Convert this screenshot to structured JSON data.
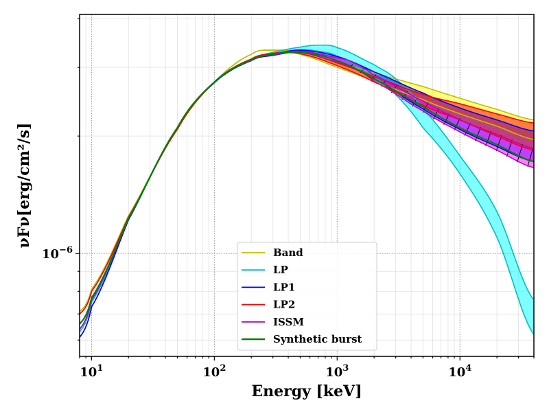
{
  "chart_data": {
    "type": "line",
    "xscale": "log",
    "yscale": "log",
    "xlim": [
      8,
      40000
    ],
    "ylim": [
      5.45e-07,
      4.1e-06
    ],
    "xlabel": "Energy [keV]",
    "ylabel": "νFν[erg/cm²/s]",
    "x_ticks": [
      {
        "value": 10,
        "base": "10",
        "exp": "1"
      },
      {
        "value": 100,
        "base": "10",
        "exp": "2"
      },
      {
        "value": 1000,
        "base": "10",
        "exp": "3"
      },
      {
        "value": 10000,
        "base": "10",
        "exp": "4"
      }
    ],
    "y_ticks": [
      {
        "value": 1e-06,
        "base": "10",
        "exp": "−6"
      }
    ],
    "grid": true,
    "legend_position": "bottom-center",
    "series": [
      {
        "name": "Band",
        "color": "#bfbf00",
        "fill": "#ffff00",
        "x": [
          8,
          10,
          20,
          50,
          100,
          200,
          300,
          500,
          1000,
          2000,
          5000,
          10000,
          20000,
          40000
        ],
        "y_lo": [
          7.1e-07,
          8.1e-07,
          1.25e-06,
          2.08e-06,
          2.75e-06,
          3.24e-06,
          3.32e-06,
          3.24e-06,
          3e-06,
          2.76e-06,
          2.48e-06,
          2.28e-06,
          2.12e-06,
          1.96e-06
        ],
        "y_hi": [
          7.1e-07,
          8.1e-07,
          1.25e-06,
          2.08e-06,
          2.75e-06,
          3.24e-06,
          3.32e-06,
          3.28e-06,
          3.08e-06,
          2.9e-06,
          2.68e-06,
          2.5e-06,
          2.34e-06,
          2.2e-06
        ]
      },
      {
        "name": "LP",
        "color": "#00bfbf",
        "fill": "#00ffff",
        "x": [
          8,
          10,
          20,
          50,
          100,
          200,
          300,
          500,
          700,
          1000,
          2000,
          3000,
          5000,
          10000,
          20000,
          40000
        ],
        "y_lo": [
          6.3e-07,
          7.5e-07,
          1.22e-06,
          2.1e-06,
          2.75e-06,
          3.12e-06,
          3.25e-06,
          3.33e-06,
          3.3e-06,
          3.2e-06,
          2.85e-06,
          2.55e-06,
          2.1e-06,
          1.6e-06,
          1.1e-06,
          6.2e-07
        ],
        "y_hi": [
          6.3e-07,
          7.5e-07,
          1.22e-06,
          2.1e-06,
          2.75e-06,
          3.14e-06,
          3.28e-06,
          3.38e-06,
          3.42e-06,
          3.37e-06,
          3.05e-06,
          2.8e-06,
          2.35e-06,
          1.78e-06,
          1.28e-06,
          7.6e-07
        ]
      },
      {
        "name": "LP1",
        "color": "#0000ff",
        "fill": "#0000ff",
        "x": [
          8,
          10,
          20,
          50,
          100,
          200,
          300,
          500,
          1000,
          2000,
          5000,
          10000,
          20000,
          40000
        ],
        "y_lo": [
          6.1e-07,
          7.3e-07,
          1.22e-06,
          2.1e-06,
          2.74e-06,
          3.12e-06,
          3.22e-06,
          3.28e-06,
          3.12e-06,
          2.8e-06,
          2.35e-06,
          2.08e-06,
          1.88e-06,
          1.72e-06
        ],
        "y_hi": [
          6.1e-07,
          7.3e-07,
          1.22e-06,
          2.1e-06,
          2.74e-06,
          3.12e-06,
          3.24e-06,
          3.32e-06,
          3.2e-06,
          2.92e-06,
          2.58e-06,
          2.36e-06,
          2.2e-06,
          2.06e-06
        ]
      },
      {
        "name": "LP2",
        "color": "#ff0000",
        "fill": "#ff0000",
        "x": [
          8,
          10,
          20,
          50,
          100,
          200,
          300,
          500,
          1000,
          2000,
          5000,
          10000,
          20000,
          40000
        ],
        "y_lo": [
          7e-07,
          8e-07,
          1.24e-06,
          2.08e-06,
          2.75e-06,
          3.15e-06,
          3.25e-06,
          3.25e-06,
          3.03e-06,
          2.75e-06,
          2.4e-06,
          2.2e-06,
          2e-06,
          1.84e-06
        ],
        "y_hi": [
          7e-07,
          8e-07,
          1.24e-06,
          2.08e-06,
          2.75e-06,
          3.15e-06,
          3.26e-06,
          3.28e-06,
          3.08e-06,
          2.84e-06,
          2.56e-06,
          2.42e-06,
          2.28e-06,
          2.16e-06
        ]
      },
      {
        "name": "ISSM",
        "color": "#bf00bf",
        "fill": "#ff00ff",
        "x": [
          8,
          10,
          20,
          50,
          100,
          200,
          300,
          500,
          1000,
          1300,
          2000,
          5000,
          10000,
          20000,
          40000
        ],
        "y_lo": [
          6.4e-07,
          7.6e-07,
          1.23e-06,
          2.1e-06,
          2.75e-06,
          3.13e-06,
          3.23e-06,
          3.28e-06,
          3.1e-06,
          3e-06,
          2.76e-06,
          2.32e-06,
          2.05e-06,
          1.84e-06,
          1.66e-06
        ],
        "y_hi": [
          6.4e-07,
          7.6e-07,
          1.23e-06,
          2.1e-06,
          2.75e-06,
          3.13e-06,
          3.25e-06,
          3.3e-06,
          3.18e-06,
          3.1e-06,
          2.86e-06,
          2.46e-06,
          2.2e-06,
          2.02e-06,
          1.86e-06
        ]
      },
      {
        "name": "Synthetic burst",
        "color": "#008000",
        "fill": "none",
        "x": [
          8,
          10,
          20,
          50,
          100,
          200,
          300,
          500,
          1000,
          2000,
          5000,
          10000,
          20000,
          40000
        ],
        "y": [
          6.6e-07,
          7.7e-07,
          1.23e-06,
          2.1e-06,
          2.75e-06,
          3.13e-06,
          3.24e-06,
          3.28e-06,
          3.12e-06,
          2.8e-06,
          2.38e-06,
          2.1e-06,
          1.9e-06,
          1.72e-06
        ]
      }
    ]
  }
}
